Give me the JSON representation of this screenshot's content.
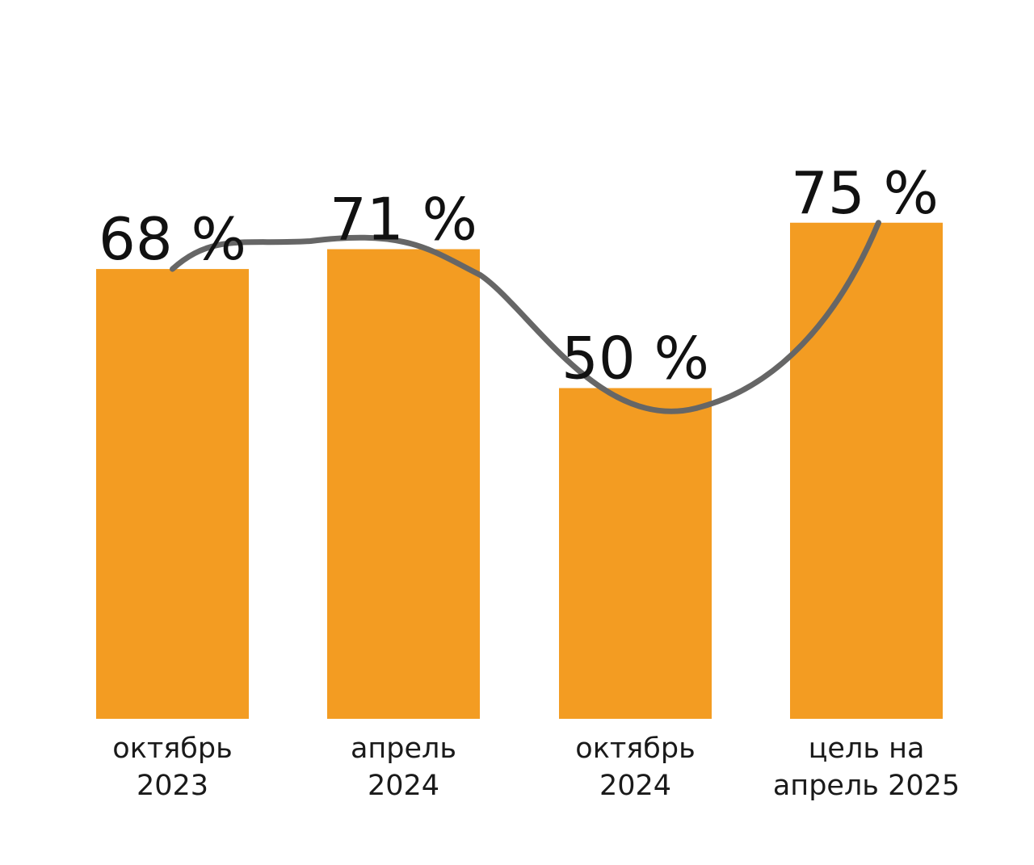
{
  "chart_data": {
    "type": "bar",
    "categories": [
      [
        "октябрь",
        "2023"
      ],
      [
        "апрель",
        "2024"
      ],
      [
        "октябрь",
        "2024"
      ],
      [
        "цель на",
        "апрель 2025"
      ]
    ],
    "values": [
      68,
      71,
      50,
      75
    ],
    "value_labels": [
      "68 %",
      "71 %",
      "50 %",
      "75 %"
    ],
    "trend_line": true,
    "ylim": [
      0,
      110
    ],
    "grid": false,
    "legend": "none"
  },
  "colors": {
    "bar": "#F39C22",
    "trend": "#666666",
    "label": "#111111"
  }
}
